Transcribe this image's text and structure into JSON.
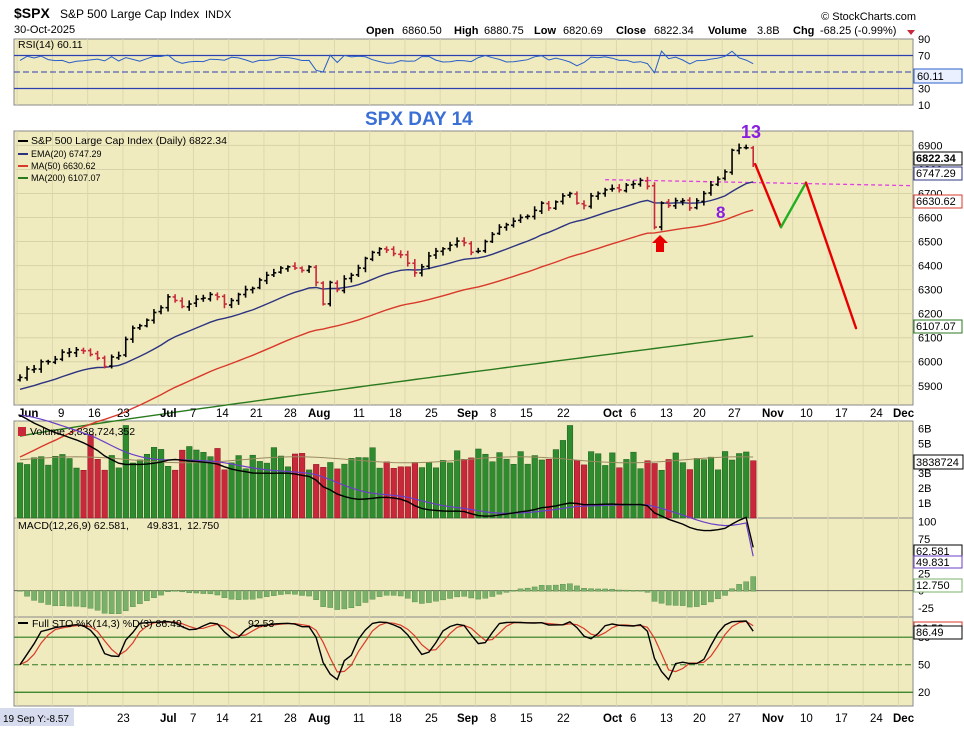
{
  "header": {
    "symbol": "$SPX",
    "name": "S&P 500 Large Cap Index",
    "exchange": "INDX",
    "date": "30-Oct-2025",
    "watermark": "© StockCharts.com",
    "ohlc": {
      "open_label": "Open",
      "open": "6860.50",
      "high_label": "High",
      "high": "6880.75",
      "low_label": "Low",
      "low": "6820.69",
      "close_label": "Close",
      "close": "6822.34",
      "volume_label": "Volume",
      "volume": "3.8B",
      "chg_label": "Chg",
      "chg": "-68.25 (-0.99%)"
    }
  },
  "colors": {
    "panel_bg": "#f0ebbf",
    "up": "#2e8b2e",
    "down": "#c8283a",
    "candle": "#000000",
    "ema20": "#2c3480",
    "ma50": "#d83a2a",
    "ma200": "#2a7a1e",
    "rsi": "#2a5fc8",
    "annotation_red": "#e80000",
    "annotation_green": "#22b022",
    "annotation_purple": "#8a1ee0",
    "dashed_line": "#e040e0",
    "title_blue": "#3a6fd6"
  },
  "annotations": {
    "chart_title": "SPX DAY 14",
    "count_top": "13",
    "count_low": "8"
  },
  "rsi_panel": {
    "label": "RSI(14) 60.11",
    "value_box": "60.11",
    "ticks": [
      "90",
      "70",
      "50",
      "30",
      "10"
    ]
  },
  "price_panel": {
    "legend": [
      {
        "text": "S&P 500 Large Cap Index (Daily) 6822.34",
        "color": "#000000"
      },
      {
        "text": "EMA(20) 6747.29",
        "color": "#2c3480"
      },
      {
        "text": "MA(50) 6630.62",
        "color": "#d83a2a"
      },
      {
        "text": "MA(200) 6107.07",
        "color": "#2a7a1e"
      }
    ],
    "ticks": [
      "6900",
      "6800",
      "6700",
      "6600",
      "6500",
      "6400",
      "6300",
      "6200",
      "6100",
      "6000",
      "5900"
    ],
    "value_boxes": [
      {
        "text": "6822.34",
        "value": 6822.34,
        "fill": "#ffffff",
        "stroke": "#000000"
      },
      {
        "text": "6747.29",
        "value": 6747.29,
        "fill": "#ffffff",
        "stroke": "#2c3480"
      },
      {
        "text": "6630.62",
        "value": 6630.62,
        "fill": "#ffffff",
        "stroke": "#d83a2a"
      },
      {
        "text": "6107.07",
        "value": 6107.07,
        "fill": "#ffffff",
        "stroke": "#2a7a1e"
      }
    ]
  },
  "volume_panel": {
    "label": "Volume 3,838,724,352",
    "ticks": [
      "6B",
      "5B",
      "4B",
      "3B",
      "2B",
      "1B"
    ],
    "value_box": "3838724"
  },
  "macd_panel": {
    "label_main": "MACD(12,26,9) 62.581,",
    "label_signal": "49.831,",
    "label_hist": "12.750",
    "ticks": [
      "100",
      "75",
      "50",
      "25",
      "0",
      "-25"
    ],
    "value_boxes": [
      "62.581",
      "49.831",
      "12.750"
    ]
  },
  "sto_panel": {
    "label_main": "Full STO %K(14,3) %D(3) 86.49,",
    "label_d": "92.53",
    "ticks": [
      "80",
      "50",
      "20"
    ],
    "value_boxes": [
      "92.53",
      "86.49"
    ]
  },
  "x_axis": {
    "top_labels": [
      "Jun",
      "9",
      "16",
      "23",
      "Jul",
      "7",
      "14",
      "21",
      "28",
      "Aug",
      "11",
      "18",
      "25",
      "Sep",
      "8",
      "15",
      "22",
      "Oct",
      "6",
      "13",
      "20",
      "27",
      "Nov",
      "10",
      "17",
      "24",
      "Dec"
    ],
    "bottom_labels": [
      "19 Sep Y:-8.57",
      "23",
      "Jul",
      "7",
      "14",
      "21",
      "28",
      "Aug",
      "11",
      "18",
      "25",
      "Sep",
      "8",
      "15",
      "22",
      "Oct",
      "6",
      "13",
      "20",
      "27",
      "Nov",
      "10",
      "17",
      "24",
      "Dec"
    ]
  },
  "chart_data": {
    "type": "line",
    "title": "",
    "x_range": [
      "2025-06-02",
      "2025-12-01"
    ],
    "x_unit": "trading day",
    "price_range": [
      5820,
      6960
    ],
    "close_series": {
      "name": "S&P 500 Large Cap Index (Daily)",
      "values": [
        5935,
        5970,
        5970,
        6000,
        6000,
        6010,
        6040,
        6040,
        6050,
        6045,
        6030,
        6015,
        5980,
        6020,
        6025,
        6093,
        6140,
        6150,
        6173,
        6205,
        6225,
        6270,
        6255,
        6230,
        6240,
        6260,
        6265,
        6280,
        6270,
        6240,
        6255,
        6280,
        6300,
        6305,
        6340,
        6360,
        6370,
        6390,
        6395,
        6390,
        6380,
        6395,
        6330,
        6240,
        6330,
        6300,
        6345,
        6360,
        6390,
        6430,
        6455,
        6470,
        6465,
        6450,
        6445,
        6410,
        6370,
        6395,
        6440,
        6460,
        6470,
        6485,
        6502,
        6495,
        6455,
        6460,
        6500,
        6530,
        6560,
        6570,
        6585,
        6600,
        6605,
        6630,
        6660,
        6640,
        6665,
        6690,
        6700,
        6660,
        6650,
        6690,
        6700,
        6715,
        6720,
        6715,
        6735,
        6740,
        6755,
        6730,
        6560,
        6660,
        6650,
        6670,
        6670,
        6640,
        6670,
        6700,
        6735,
        6760,
        6790,
        6880,
        6890,
        6890,
        6822
      ]
    },
    "ema20": {
      "name": "EMA(20)",
      "last": 6747.29
    },
    "ma50": {
      "name": "MA(50)",
      "last": 6630.62
    },
    "ma200": {
      "name": "MA(200)",
      "last": 6107.07
    },
    "resistance_level": 6745,
    "projection_path": [
      {
        "date": "2025-10-30",
        "price": 6822
      },
      {
        "date": "2025-11-04",
        "price": 6560
      },
      {
        "date": "2025-11-10",
        "price": 6745
      },
      {
        "date": "2025-11-24",
        "price": 6140
      }
    ],
    "rsi": {
      "value": 60.11,
      "range": [
        10,
        90
      ]
    },
    "volume": {
      "last": 3838724352,
      "range": [
        0,
        6500000000.0
      ]
    },
    "macd": {
      "macd": 62.581,
      "signal": 49.831,
      "histogram": 12.75
    },
    "stochastic": {
      "k": 86.49,
      "d": 92.53
    }
  }
}
